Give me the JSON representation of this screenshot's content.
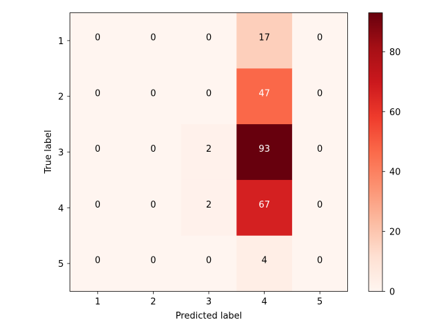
{
  "chart_data": {
    "type": "heatmap",
    "title": "",
    "xlabel": "Predicted label",
    "ylabel": "True label",
    "x_categories": [
      "1",
      "2",
      "3",
      "4",
      "5"
    ],
    "y_categories": [
      "1",
      "2",
      "3",
      "4",
      "5"
    ],
    "values": [
      [
        0,
        0,
        0,
        17,
        0
      ],
      [
        0,
        0,
        0,
        47,
        0
      ],
      [
        0,
        0,
        2,
        93,
        0
      ],
      [
        0,
        0,
        2,
        67,
        0
      ],
      [
        0,
        0,
        0,
        4,
        0
      ]
    ],
    "colormap": "Reds",
    "colorbar": {
      "min": 0,
      "max": 93,
      "ticks": [
        0,
        20,
        40,
        60,
        80
      ],
      "tick_labels": [
        "0",
        "20",
        "40",
        "60",
        "80"
      ]
    },
    "grid": false
  }
}
